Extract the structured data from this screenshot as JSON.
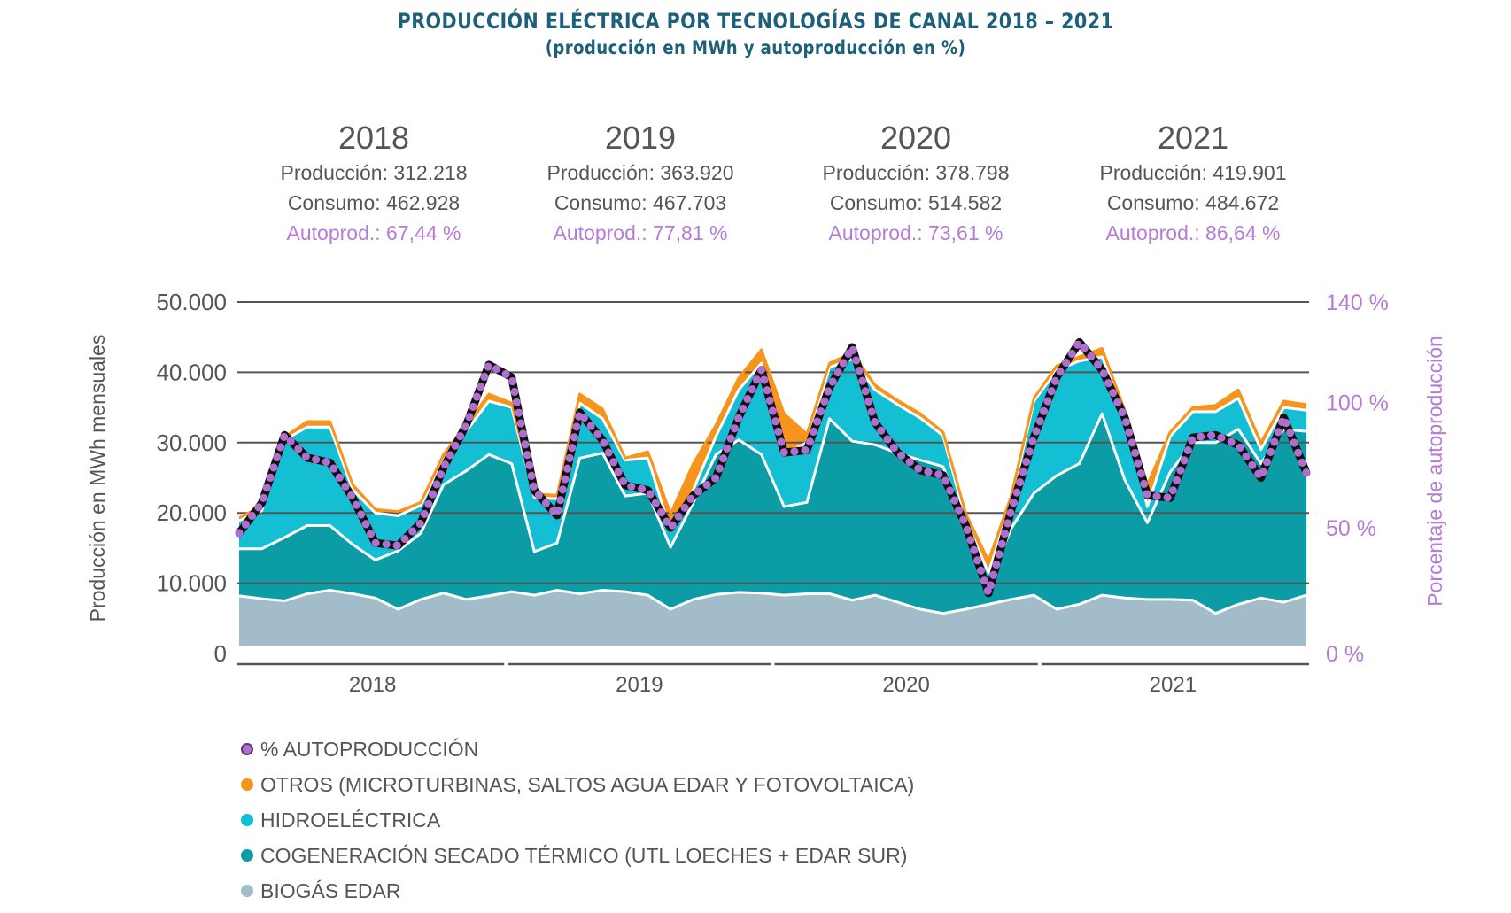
{
  "header": {
    "title": "PRODUCCIÓN ELÉCTRICA POR TECNOLOGÍAS DE CANAL 2018 – 2021",
    "subtitle": "(producción en MWh y autoproducción en %)"
  },
  "years": [
    {
      "year": "2018",
      "produccion": "Producción: 312.218",
      "consumo": "Consumo: 462.928",
      "autoprod": "Autoprod.: 67,44 %"
    },
    {
      "year": "2019",
      "produccion": "Producción: 363.920",
      "consumo": "Consumo: 467.703",
      "autoprod": "Autoprod.: 77,81 %"
    },
    {
      "year": "2020",
      "produccion": "Producción: 378.798",
      "consumo": "Consumo: 514.582",
      "autoprod": "Autoprod.: 73,61 %"
    },
    {
      "year": "2021",
      "produccion": "Producción: 419.901",
      "consumo": "Consumo: 484.672",
      "autoprod": "Autoprod.: 86,64 %"
    }
  ],
  "colors": {
    "biogas": "#a3bcc9",
    "cogeneracion": "#0b9ca5",
    "hidroelectrica": "#14bfd3",
    "otros": "#f7941d",
    "autoproduccion": "#b06fcf",
    "grid": "#555555",
    "right_axis": "#b77bd6"
  },
  "chart_data": {
    "type": "area",
    "title": "PRODUCCIÓN ELÉCTRICA POR TECNOLOGÍAS DE CANAL 2018 – 2021",
    "subtitle": "(producción en MWh y autoproducción en %)",
    "xlabel": "",
    "ylabel": "Producción en MWh mensuales",
    "ylabel_right": "Porcentaje de autoproducción",
    "ylim": [
      0,
      50000
    ],
    "ylim_right": [
      0,
      140
    ],
    "y_ticks": [
      "0",
      "10.000",
      "20.000",
      "30.000",
      "40.000",
      "50.000"
    ],
    "y_tick_values": [
      0,
      10000,
      20000,
      30000,
      40000,
      50000
    ],
    "y_right_ticks": [
      {
        "label": "0 %",
        "value": 0
      },
      {
        "label": "50 %",
        "value": 50
      },
      {
        "label": "100 %",
        "value": 100
      },
      {
        "label": "140 %",
        "value": 140
      }
    ],
    "x_groups": [
      "2018",
      "2019",
      "2020",
      "2021"
    ],
    "months_per_group": 12,
    "grid": true,
    "legend_position": "bottom-left",
    "stacked": true,
    "series_cumulative_note": "values are stacked tops (cumulative MWh) as read from the chart",
    "series": [
      {
        "key": "biogas",
        "name": "BIOGÁS EDAR",
        "kind": "area",
        "values": [
          8200,
          7800,
          7500,
          8500,
          9000,
          8500,
          7900,
          6300,
          7700,
          8600,
          7700,
          8200,
          8800,
          8300,
          9000,
          8500,
          9000,
          8800,
          8300,
          6300,
          7700,
          8400,
          8700,
          8600,
          8300,
          8500,
          8500,
          7600,
          8300,
          7300,
          6300,
          5700,
          6300,
          7000,
          7700,
          8300,
          6300,
          7000,
          8300,
          7900,
          7700,
          7700,
          7600,
          5700,
          7000,
          7900,
          7300,
          8300
        ]
      },
      {
        "key": "cogeneracion",
        "name": "COGENERACIÓN SECADO TÉRMICO (UTL LOECHES + EDAR SUR)",
        "kind": "area",
        "values": [
          14900,
          14900,
          16500,
          18200,
          18200,
          15500,
          13300,
          14600,
          17100,
          24000,
          26000,
          28300,
          27000,
          14500,
          15700,
          27800,
          28500,
          22400,
          22800,
          15100,
          21500,
          28300,
          30400,
          28300,
          20900,
          21500,
          33400,
          30200,
          29700,
          28500,
          27500,
          26600,
          18200,
          9800,
          17800,
          22800,
          25300,
          27000,
          34100,
          24700,
          18600,
          25800,
          30000,
          30000,
          31900,
          27000,
          31900,
          31600
        ]
      },
      {
        "key": "hidroelectrica",
        "name": "HIDROELÉCTRICA",
        "kind": "area",
        "values": [
          18900,
          20300,
          30400,
          32200,
          32200,
          23300,
          20000,
          19600,
          21100,
          27500,
          31600,
          35900,
          35000,
          22200,
          22000,
          35600,
          33400,
          27500,
          27800,
          17400,
          23300,
          30900,
          37500,
          41300,
          28300,
          30000,
          40700,
          41900,
          37500,
          35400,
          33500,
          31000,
          19000,
          11500,
          21500,
          35900,
          40300,
          41600,
          42200,
          34100,
          20900,
          30900,
          34400,
          34400,
          36300,
          29000,
          35000,
          34600
        ]
      },
      {
        "key": "otros",
        "name": "OTROS (MICROTURBINAS, SALTOS AGUA EDAR Y FOTOVOLTAICA)",
        "kind": "area",
        "values": [
          19300,
          21000,
          30800,
          33000,
          33000,
          24000,
          20500,
          20200,
          21500,
          28300,
          32500,
          36900,
          35600,
          22700,
          22500,
          36900,
          34800,
          27800,
          28700,
          19900,
          27000,
          32500,
          39200,
          43200,
          34100,
          31200,
          41300,
          42800,
          38200,
          36000,
          34100,
          31500,
          19900,
          13200,
          22400,
          36300,
          40900,
          42200,
          43400,
          34600,
          24000,
          31500,
          35000,
          35300,
          37500,
          30000,
          35900,
          35400
        ]
      },
      {
        "key": "autoproduccion",
        "name": "% AUTOPRODUCCIÓN",
        "kind": "line",
        "axis": "right",
        "unit": "%",
        "values": [
          48,
          60,
          87,
          78,
          76,
          62,
          44,
          43,
          52,
          74,
          91,
          115,
          110,
          65,
          55,
          96,
          85,
          67,
          65,
          50,
          63,
          70,
          94,
          113,
          80,
          81,
          106,
          122,
          92,
          80,
          73,
          71,
          51,
          24,
          57,
          86,
          110,
          124,
          113,
          94,
          63,
          62,
          86,
          87,
          83,
          70,
          94,
          72
        ]
      }
    ]
  },
  "legend": [
    {
      "key": "autoproduccion",
      "label": "% AUTOPRODUCCIÓN"
    },
    {
      "key": "otros",
      "label": "OTROS (MICROTURBINAS, SALTOS AGUA EDAR Y FOTOVOLTAICA)"
    },
    {
      "key": "hidroelectrica",
      "label": "HIDROELÉCTRICA"
    },
    {
      "key": "cogeneracion",
      "label": "COGENERACIÓN SECADO TÉRMICO (UTL LOECHES + EDAR SUR)"
    },
    {
      "key": "biogas",
      "label": "BIOGÁS EDAR"
    }
  ]
}
